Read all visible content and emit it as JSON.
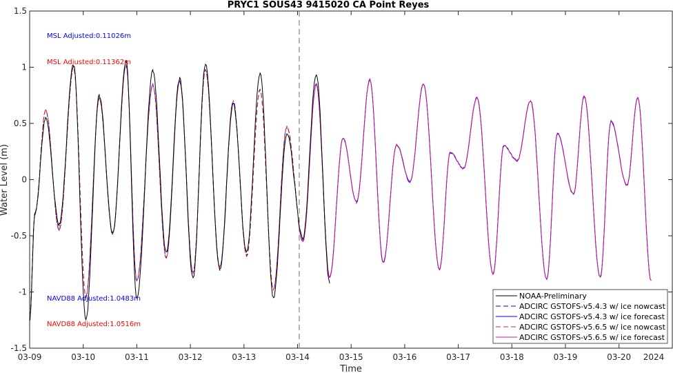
{
  "chart_data": {
    "type": "line",
    "title": "PRYC1 SOUS43 9415020 CA Point Reyes",
    "xlabel": "Time",
    "ylabel": "Water Level (m)",
    "year_label": "2024",
    "xlim": [
      "03-09",
      "03-21"
    ],
    "ylim": [
      -1.5,
      1.5
    ],
    "x_ticks": [
      "03-09",
      "03-10",
      "03-11",
      "03-12",
      "03-13",
      "03-14",
      "03-15",
      "03-16",
      "03-17",
      "03-18",
      "03-19",
      "03-20"
    ],
    "y_ticks": [
      "1.5",
      "1",
      "0.5",
      "0",
      "-0.5",
      "-1",
      "-1.5"
    ],
    "forecast_start": "03-14",
    "grid": false,
    "legend_position": "bottom-right",
    "annotations": [
      {
        "text": "MSL Adjusted:0.11026m",
        "color": "#0000ff"
      },
      {
        "text": "MSL Adjusted:0.11362m",
        "color": "#ff0000"
      },
      {
        "text": "NAVD88 Adjusted:1.0483m",
        "color": "#0000ff"
      },
      {
        "text": "NAVD88 Adjusted:1.0516m",
        "color": "#ff0000"
      }
    ],
    "extrema": {
      "x_days_from_03-09": [
        0.0,
        0.1,
        0.3,
        0.55,
        0.82,
        1.05,
        1.3,
        1.55,
        1.8,
        2.0,
        2.3,
        2.55,
        2.8,
        3.05,
        3.28,
        3.55,
        3.8,
        4.05,
        4.3,
        4.55,
        4.8,
        5.1,
        5.35,
        5.6,
        5.85,
        6.1,
        6.35,
        6.6,
        6.85,
        7.1,
        7.35,
        7.65,
        7.85,
        8.1,
        8.35,
        8.65,
        8.85,
        9.1,
        9.35,
        9.65,
        9.85,
        10.15,
        10.35,
        10.65,
        10.85,
        11.15,
        11.35,
        11.6,
        11.85,
        12.0
      ],
      "observed": [
        -1.25,
        -0.3,
        0.55,
        -0.4,
        1.02,
        -1.25,
        0.75,
        -0.48,
        1.05,
        -1.05,
        0.97,
        -0.65,
        0.9,
        -0.88,
        1.03,
        -0.8,
        0.68,
        -0.65,
        0.95,
        -1.05,
        0.4,
        -0.52,
        0.94,
        -0.92,
        null,
        null,
        null,
        null,
        null,
        null,
        null,
        null,
        null,
        null,
        null,
        null,
        null,
        null,
        null,
        null,
        null,
        null,
        null,
        null,
        null,
        null,
        null,
        null,
        null,
        null
      ],
      "model": [
        -1.22,
        -0.3,
        0.62,
        -0.45,
        1.0,
        -1.05,
        0.72,
        -0.48,
        1.02,
        -0.9,
        0.85,
        -0.7,
        0.88,
        -0.83,
        0.98,
        -0.78,
        0.7,
        -0.68,
        0.8,
        -0.98,
        0.47,
        -0.55,
        0.85,
        -0.87,
        0.37,
        -0.2,
        0.89,
        -0.74,
        0.31,
        -0.02,
        0.85,
        -0.8,
        0.24,
        0.1,
        0.73,
        -0.84,
        0.3,
        0.17,
        0.7,
        -0.89,
        0.41,
        -0.13,
        0.74,
        -0.87,
        0.52,
        -0.05,
        0.73,
        -0.9,
        null,
        null
      ]
    },
    "series": [
      {
        "name": "NOAA-Preliminary",
        "color": "#000000",
        "dash": "solid"
      },
      {
        "name": "ADCIRC GSTOFS-v5.4.3 w/ ice nowcast",
        "color": "#0000ff",
        "dash": "dashed"
      },
      {
        "name": "ADCIRC GSTOFS-v5.4.3 w/ ice forecast",
        "color": "#0000ff",
        "dash": "solid"
      },
      {
        "name": "ADCIRC GSTOFS-v5.6.5 w/ ice nowcast",
        "color": "#d62728",
        "dash": "dashed"
      },
      {
        "name": "ADCIRC GSTOFS-v5.6.5 w/ ice forecast",
        "color": "#c71585",
        "dash": "solid"
      }
    ]
  }
}
